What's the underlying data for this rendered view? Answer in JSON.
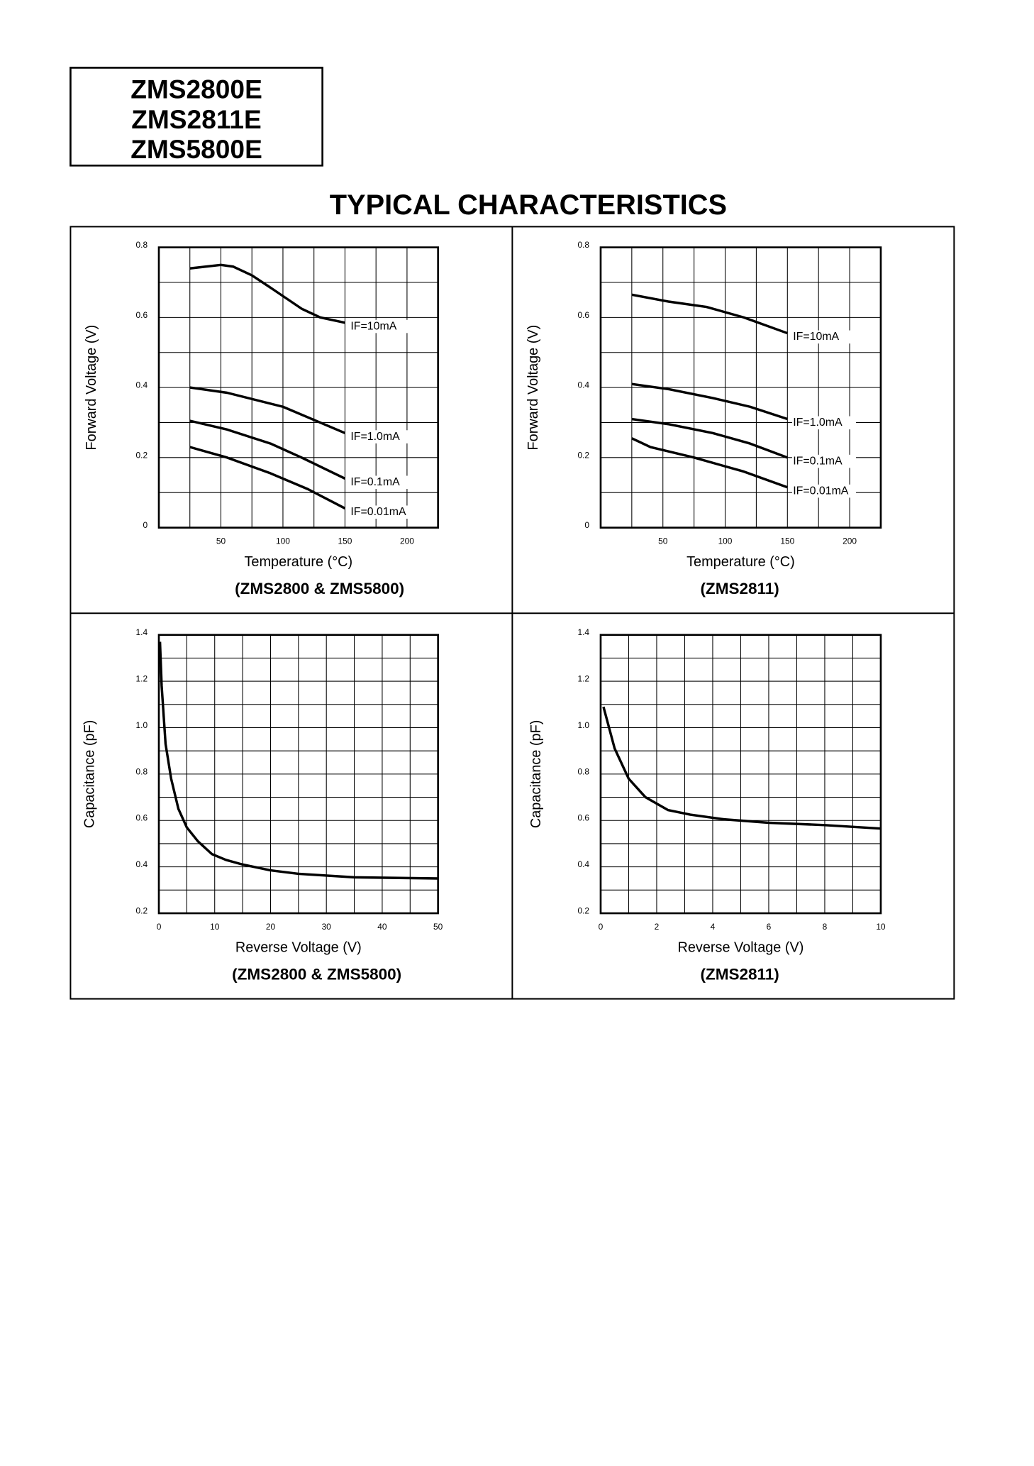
{
  "header": {
    "part_numbers": [
      "ZMS2800E",
      "ZMS2811E",
      "ZMS5800E"
    ]
  },
  "title": "TYPICAL CHARACTERISTICS",
  "chart_data": [
    {
      "type": "line",
      "x_label": "Temperature (°C)",
      "y_label": "Forward Voltage (V)",
      "caption": "(ZMS2800 & ZMS5800)",
      "xlim": [
        0,
        225
      ],
      "ylim": [
        0,
        0.8
      ],
      "xticks": [
        50,
        100,
        150,
        200
      ],
      "yticks": [
        0,
        0.2,
        0.4,
        0.6,
        0.8
      ],
      "grid": true,
      "minor_grid": true,
      "labels": "line-end",
      "series": [
        {
          "name": "IF=10mA",
          "color": "#000000",
          "x": [
            25,
            50,
            60,
            75,
            90,
            115,
            130,
            150
          ],
          "values": [
            0.74,
            0.75,
            0.745,
            0.72,
            0.685,
            0.625,
            0.6,
            0.585
          ]
        },
        {
          "name": "IF=1.0mA",
          "color": "#000000",
          "x": [
            25,
            55,
            100,
            120,
            150
          ],
          "values": [
            0.4,
            0.385,
            0.345,
            0.315,
            0.27
          ]
        },
        {
          "name": "IF=0.1mA",
          "color": "#000000",
          "x": [
            25,
            55,
            90,
            115,
            150
          ],
          "values": [
            0.305,
            0.28,
            0.24,
            0.2,
            0.14
          ]
        },
        {
          "name": "IF=0.01mA",
          "color": "#000000",
          "x": [
            25,
            55,
            90,
            120,
            150
          ],
          "values": [
            0.23,
            0.2,
            0.155,
            0.11,
            0.055
          ]
        }
      ]
    },
    {
      "type": "line",
      "x_label": "Temperature (°C)",
      "y_label": "Forward Voltage (V)",
      "caption": "(ZMS2811)",
      "xlim": [
        0,
        225
      ],
      "ylim": [
        0,
        0.8
      ],
      "xticks": [
        50,
        100,
        150,
        200
      ],
      "yticks": [
        0,
        0.2,
        0.4,
        0.6,
        0.8
      ],
      "grid": true,
      "minor_grid": true,
      "labels": "line-end",
      "series": [
        {
          "name": "IF=10mA",
          "color": "#000000",
          "x": [
            25,
            55,
            85,
            115,
            150
          ],
          "values": [
            0.665,
            0.645,
            0.63,
            0.6,
            0.555
          ]
        },
        {
          "name": "IF=1.0mA",
          "color": "#000000",
          "x": [
            25,
            55,
            90,
            120,
            150
          ],
          "values": [
            0.41,
            0.395,
            0.37,
            0.345,
            0.31
          ]
        },
        {
          "name": "IF=0.1mA",
          "color": "#000000",
          "x": [
            25,
            55,
            90,
            120,
            150
          ],
          "values": [
            0.31,
            0.295,
            0.27,
            0.24,
            0.2
          ]
        },
        {
          "name": "IF=0.01mA",
          "color": "#000000",
          "x": [
            25,
            40,
            75,
            115,
            150
          ],
          "values": [
            0.255,
            0.23,
            0.2,
            0.16,
            0.115
          ]
        }
      ]
    },
    {
      "type": "line",
      "x_label": "Reverse Voltage (V)",
      "y_label": "Capacitance (pF)",
      "caption": "(ZMS2800 & ZMS5800)",
      "xlim": [
        0,
        50
      ],
      "ylim": [
        0.2,
        1.4
      ],
      "xticks": [
        0,
        10,
        20,
        30,
        40,
        50
      ],
      "yticks": [
        0.2,
        0.4,
        0.6,
        0.8,
        {
          "value": 1,
          "label": "1.0"
        },
        1.2,
        1.4
      ],
      "grid": true,
      "minor_grid": true,
      "series": [
        {
          "color": "#000000",
          "x": [
            0.2,
            0.5,
            1.2,
            2.2,
            3.5,
            5,
            7,
            9.5,
            12,
            15,
            20,
            25,
            35,
            50
          ],
          "values": [
            1.37,
            1.18,
            0.93,
            0.78,
            0.65,
            0.57,
            0.51,
            0.455,
            0.43,
            0.41,
            0.385,
            0.37,
            0.355,
            0.35
          ]
        }
      ]
    },
    {
      "type": "line",
      "x_label": "Reverse Voltage (V)",
      "y_label": "Capacitance (pF)",
      "caption": "(ZMS2811)",
      "xlim": [
        0,
        10
      ],
      "ylim": [
        0.2,
        1.4
      ],
      "xticks": [
        0,
        2,
        4,
        6,
        8,
        10
      ],
      "yticks": [
        0.2,
        0.4,
        0.6,
        0.8,
        {
          "value": 1,
          "label": "1.0"
        },
        1.2,
        1.4
      ],
      "grid": true,
      "minor_grid": true,
      "series": [
        {
          "color": "#000000",
          "x": [
            0.1,
            0.5,
            1,
            1.6,
            2.4,
            3.2,
            4.4,
            6,
            8,
            10
          ],
          "values": [
            1.09,
            0.91,
            0.78,
            0.7,
            0.645,
            0.625,
            0.605,
            0.59,
            0.58,
            0.565
          ]
        }
      ]
    }
  ]
}
